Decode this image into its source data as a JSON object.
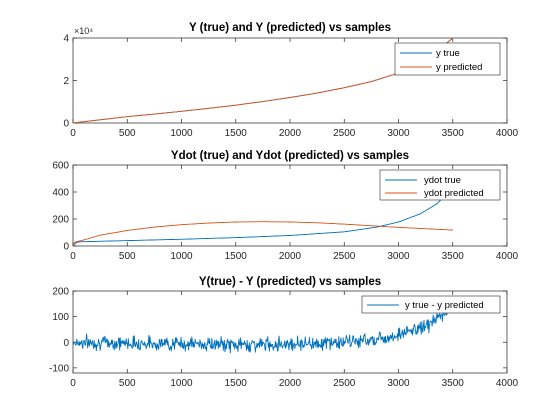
{
  "chart_data": [
    {
      "type": "line",
      "title": "Y (true) and Y (predicted) vs samples",
      "xlabel": "",
      "ylabel": "",
      "xlim": [
        0,
        4000
      ],
      "ylim": [
        0,
        40000
      ],
      "xticks": [
        0,
        500,
        1000,
        1500,
        2000,
        2500,
        3000,
        3500,
        4000
      ],
      "yticks": [
        0,
        20000,
        40000
      ],
      "ytick_labels": [
        "0",
        "2",
        "4"
      ],
      "y_exponent_label": "×10⁴",
      "legend_position": "top-right",
      "grid": false,
      "x": [
        0,
        250,
        500,
        750,
        1000,
        1250,
        1500,
        1750,
        2000,
        2250,
        2500,
        2750,
        3000,
        3250,
        3500
      ],
      "series": [
        {
          "name": "y true",
          "color": "#0072BD",
          "values": [
            0,
            1500,
            3000,
            4200,
            5500,
            6900,
            8400,
            10100,
            12000,
            14100,
            16600,
            19500,
            23500,
            29500,
            40000
          ]
        },
        {
          "name": "y predicted",
          "color": "#D95319",
          "values": [
            0,
            1500,
            3000,
            4200,
            5500,
            6900,
            8400,
            10100,
            12000,
            14100,
            16600,
            19500,
            23500,
            29500,
            40000
          ]
        }
      ]
    },
    {
      "type": "line",
      "title": "Ydot (true) and Ydot (predicted) vs samples",
      "xlabel": "",
      "ylabel": "",
      "xlim": [
        0,
        4000
      ],
      "ylim": [
        0,
        600
      ],
      "xticks": [
        0,
        500,
        1000,
        1500,
        2000,
        2500,
        3000,
        3500,
        4000
      ],
      "yticks": [
        0,
        200,
        400,
        600
      ],
      "ytick_labels": [
        "0",
        "200",
        "400",
        "600"
      ],
      "legend_position": "top-right",
      "grid": false,
      "series": [
        {
          "name": "ydot true",
          "color": "#0072BD",
          "x": [
            0,
            20,
            50,
            100,
            500,
            1000,
            1500,
            2000,
            2500,
            2800,
            3000,
            3200,
            3350,
            3450,
            3500
          ],
          "values": [
            0,
            20,
            30,
            32,
            40,
            50,
            62,
            78,
            105,
            140,
            178,
            238,
            310,
            390,
            430
          ]
        },
        {
          "name": "ydot predicted",
          "color": "#D95319",
          "x": [
            0,
            20,
            100,
            250,
            500,
            750,
            1000,
            1250,
            1500,
            1750,
            2000,
            2250,
            2500,
            2750,
            3000,
            3250,
            3500
          ],
          "values": [
            0,
            30,
            45,
            80,
            115,
            140,
            158,
            170,
            178,
            180,
            178,
            172,
            162,
            150,
            138,
            128,
            118
          ]
        }
      ]
    },
    {
      "type": "line",
      "title": "Y(true) - Y (predicted) vs samples",
      "xlabel": "",
      "ylabel": "",
      "xlim": [
        0,
        4000
      ],
      "ylim": [
        -120,
        200
      ],
      "xticks": [
        0,
        500,
        1000,
        1500,
        2000,
        2500,
        3000,
        3500,
        4000
      ],
      "yticks": [
        -100,
        0,
        100,
        200
      ],
      "ytick_labels": [
        "-100",
        "0",
        "100",
        "200"
      ],
      "legend_position": "top-right",
      "grid": false,
      "series": [
        {
          "name": "y true - y predicted",
          "color": "#0072BD",
          "noise_amplitude": 22,
          "x": [
            0,
            500,
            1000,
            1500,
            1800,
            2000,
            2300,
            2500,
            2700,
            2900,
            3000,
            3100,
            3200,
            3300,
            3400,
            3450
          ],
          "values": [
            0,
            -3,
            -6,
            -10,
            -8,
            -5,
            -3,
            0,
            8,
            20,
            30,
            42,
            55,
            75,
            105,
            118
          ]
        }
      ]
    }
  ]
}
